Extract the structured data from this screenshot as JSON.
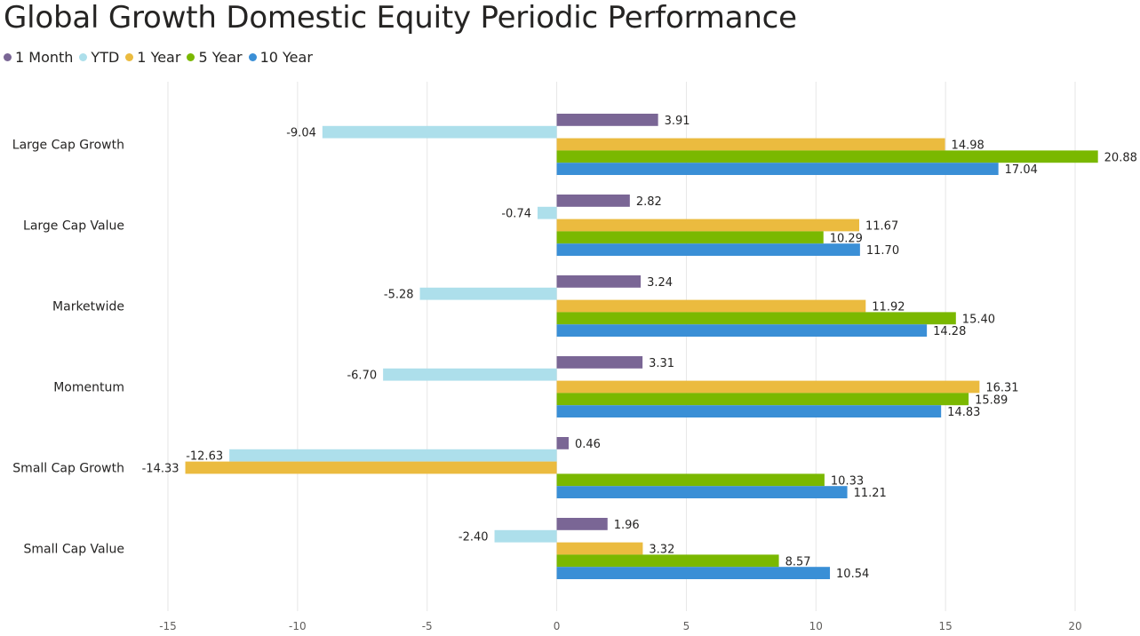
{
  "title": "Global Growth Domestic Equity Periodic Performance",
  "legend": [
    {
      "label": "1 Month",
      "color": "#7a6695"
    },
    {
      "label": "YTD",
      "color": "#addfeb"
    },
    {
      "label": "1 Year",
      "color": "#ebbb3f"
    },
    {
      "label": "5 Year",
      "color": "#7ab800"
    },
    {
      "label": "10 Year",
      "color": "#3a8fd6"
    }
  ],
  "chart_data": {
    "type": "bar",
    "orientation": "horizontal",
    "categories": [
      "Large Cap Growth",
      "Large Cap Value",
      "Marketwide",
      "Momentum",
      "Small Cap Growth",
      "Small Cap Value"
    ],
    "series": [
      {
        "name": "1 Month",
        "color": "#7a6695",
        "values": [
          3.91,
          2.82,
          3.24,
          3.31,
          0.46,
          1.96
        ],
        "labels": [
          "3.91",
          "2.82",
          "3.24",
          "3.31",
          "0.46",
          "1.96"
        ]
      },
      {
        "name": "YTD",
        "color": "#addfeb",
        "values": [
          -9.04,
          -0.74,
          -5.28,
          -6.7,
          -12.63,
          -2.4
        ],
        "labels": [
          "-9.04",
          "-0.74",
          "-5.28",
          "-6.70",
          "-12.63",
          "-2.40"
        ]
      },
      {
        "name": "1 Year",
        "color": "#ebbb3f",
        "values": [
          14.98,
          11.67,
          11.92,
          16.31,
          -14.33,
          3.32
        ],
        "labels": [
          "14.98",
          "11.67",
          "11.92",
          "16.31",
          "-14.33",
          "3.32"
        ]
      },
      {
        "name": "5 Year",
        "color": "#7ab800",
        "values": [
          20.88,
          10.29,
          15.4,
          15.89,
          10.33,
          8.57
        ],
        "labels": [
          "20.88",
          "10.29",
          "15.40",
          "15.89",
          "10.33",
          "8.57"
        ]
      },
      {
        "name": "10 Year",
        "color": "#3a8fd6",
        "values": [
          17.04,
          11.7,
          14.28,
          14.83,
          11.21,
          10.54
        ],
        "labels": [
          "17.04",
          "11.70",
          "14.28",
          "14.83",
          "11.21",
          "10.54"
        ]
      }
    ],
    "xlim": [
      -15,
      20
    ],
    "xticks": [
      -15,
      -10,
      -5,
      0,
      5,
      10,
      15,
      20
    ],
    "xtick_labels": [
      "-15",
      "-10",
      "-5",
      "0",
      "5",
      "10",
      "15",
      "20"
    ],
    "grid": true,
    "legend_position": "top-left"
  }
}
